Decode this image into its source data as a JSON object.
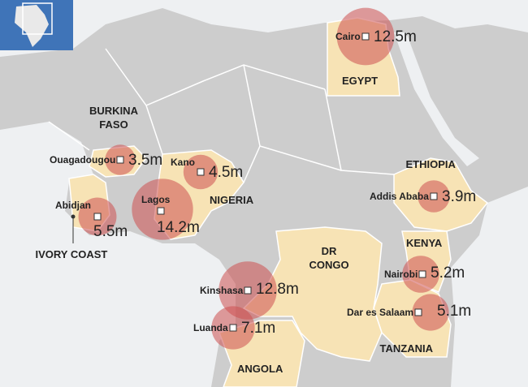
{
  "map": {
    "cities": [
      {
        "name": "Cairo",
        "population": 12.5,
        "value_label": "12.5m"
      },
      {
        "name": "Ouagadougou",
        "population": 3.5,
        "value_label": "3.5m"
      },
      {
        "name": "Kano",
        "population": 4.5,
        "value_label": "4.5m"
      },
      {
        "name": "Abidjan",
        "population": 5.5,
        "value_label": "5.5m"
      },
      {
        "name": "Lagos",
        "population": 14.2,
        "value_label": "14.2m"
      },
      {
        "name": "Addis Ababa",
        "population": 3.9,
        "value_label": "3.9m"
      },
      {
        "name": "Nairobi",
        "population": 5.2,
        "value_label": "5.2m"
      },
      {
        "name": "Dar es Salaam",
        "population": 5.1,
        "value_label": "5.1m"
      },
      {
        "name": "Kinshasa",
        "population": 12.8,
        "value_label": "12.8m"
      },
      {
        "name": "Luanda",
        "population": 7.1,
        "value_label": "7.1m"
      }
    ],
    "countries": [
      "EGYPT",
      "BURKINA FASO",
      "NIGERIA",
      "ETHIOPIA",
      "IVORY COAST",
      "KENYA",
      "DR CONGO",
      "TANZANIA",
      "ANGOLA"
    ]
  }
}
